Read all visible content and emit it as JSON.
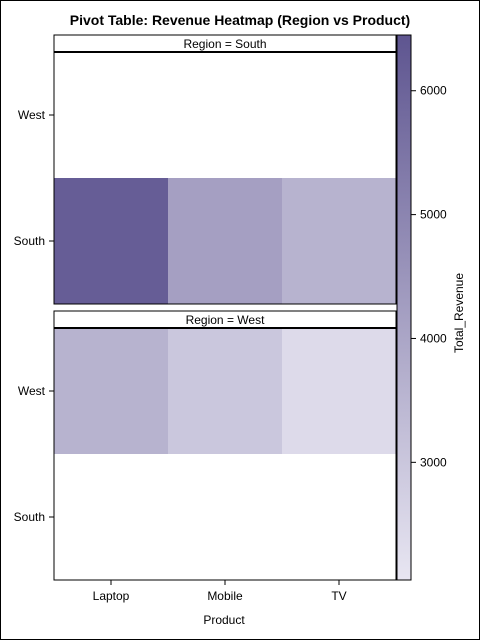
{
  "chart_data": {
    "type": "heatmap",
    "title": "Pivot Table: Revenue Heatmap (Region vs Product)",
    "xlabel": "Product",
    "colorbar_label": "Total_Revenue",
    "x_categories": [
      "Laptop",
      "Mobile",
      "TV"
    ],
    "y_categories": [
      "West",
      "South"
    ],
    "panels": [
      {
        "label": "Region = South",
        "region": "South",
        "values": {
          "Laptop": 6200,
          "Mobile": 4200,
          "TV": 3600
        }
      },
      {
        "label": "Region = West",
        "region": "West",
        "values": {
          "Laptop": 3600,
          "Mobile": 3000,
          "TV": 2400
        }
      }
    ],
    "color_range": [
      2050,
      6450
    ],
    "colorbar_ticks": [
      3000,
      4000,
      5000,
      6000
    ],
    "color_low": "#e8e6f2",
    "color_high": "#5e5590"
  }
}
